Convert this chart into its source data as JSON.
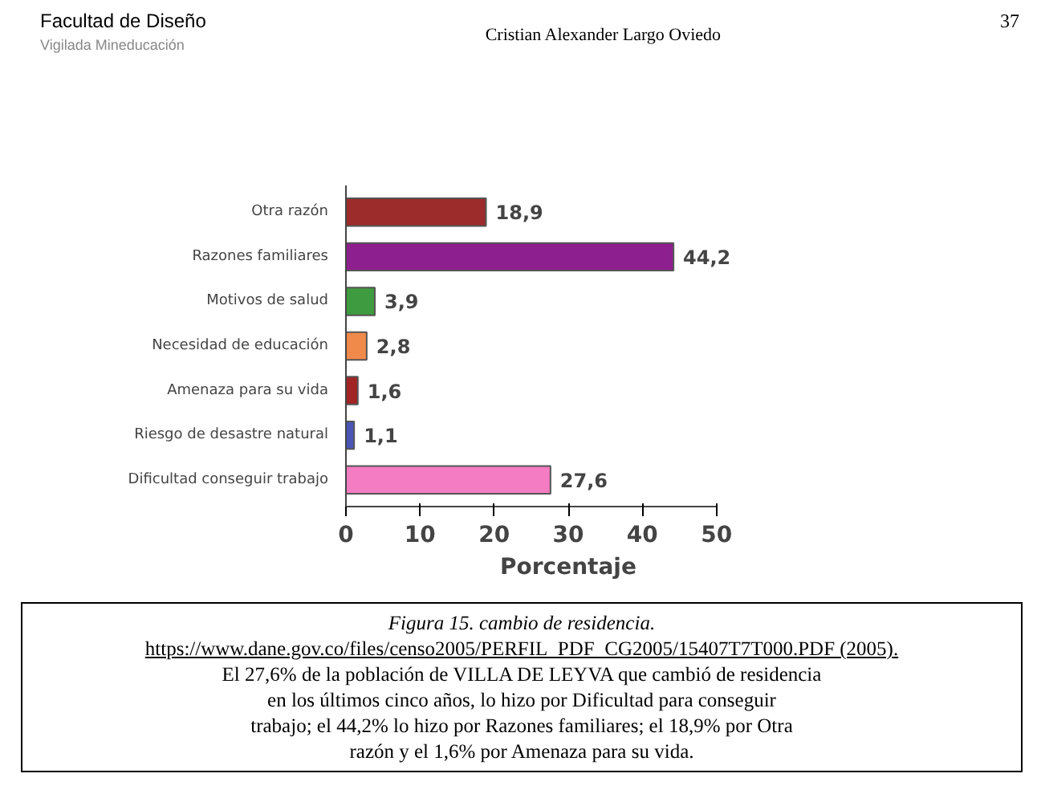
{
  "chart_data": {
    "type": "bar",
    "orientation": "horizontal",
    "title": "Figura 15. cambio de residencia.",
    "categories": [
      "Otra razón",
      "Razones familiares",
      "Motivos de salud",
      "Necesidad de educación",
      "Amenaza para su vida",
      "Riesgo de desastre natural",
      "Dificultad conseguir trabajo"
    ],
    "values": [
      18.9,
      44.2,
      3.9,
      2.8,
      1.6,
      1.1,
      27.6
    ],
    "colors": [
      "#9c2b2b",
      "#8e1f8e",
      "#3f9b3f",
      "#f08a4b",
      "#a32424",
      "#4a55b5",
      "#f47cc2"
    ],
    "value_labels": [
      "18,9",
      "44,2",
      "3,9",
      "2,8",
      "1,6",
      "1,1",
      "27,6"
    ],
    "xlabel": "Porcentaje",
    "xlim": [
      0,
      50
    ],
    "xticks": [
      0,
      10,
      20,
      30,
      40,
      50
    ],
    "grid": false,
    "annotations": [
      "Facultad de Diseño",
      "Vigilada Mineducación",
      "Cristian Alexander Largo Oviedo",
      "37",
      "https://www.dane.gov.co/files/censo2005/PERFIL_PDF_CG2005/15407T7T000.PDF (2005).",
      "El 27,6% de la población de VILLA DE LEYVA que cambió de residencia",
      "en los últimos cinco años, lo hizo por Dificultad para conseguir",
      "trabajo; el 44,2% lo hizo por Razones familiares; el 18,9% por Otra",
      "razón y el 1,6% por Amenaza para su vida."
    ]
  }
}
